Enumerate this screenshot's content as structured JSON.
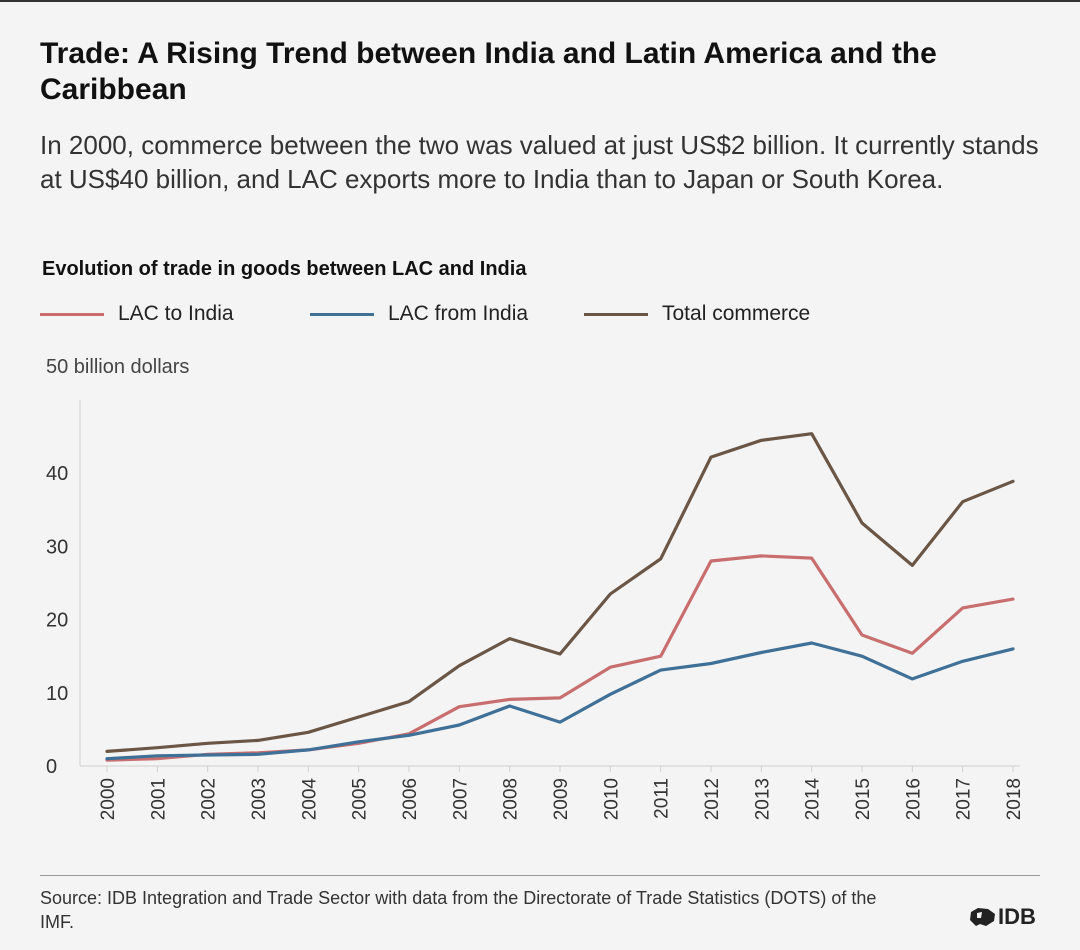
{
  "title": "Trade: A Rising Trend between India and Latin America and the Caribbean",
  "subtitle": "In 2000, commerce between the two was valued at just US$2 billion. It currently stands at US$40 billion, and LAC exports more to India than to Japan or South Korea.",
  "chart_title": "Evolution of trade in goods between LAC and India",
  "unit_label": "50 billion dollars",
  "legend": [
    {
      "label": "LAC to India",
      "color": "#c96e6e"
    },
    {
      "label": "LAC from India",
      "color": "#3e7098"
    },
    {
      "label": "Total commerce",
      "color": "#6b5646"
    }
  ],
  "source": "Source: IDB Integration and Trade Sector with data from the Directorate of Trade Statistics (DOTS) of the IMF.",
  "logo_text": "IDB",
  "chart_data": {
    "type": "line",
    "title": "Evolution of trade in goods between LAC and India",
    "xlabel": "",
    "ylabel": "50 billion dollars",
    "x": [
      "2000",
      "2001",
      "2002",
      "2003",
      "2004",
      "2005",
      "2006",
      "2007",
      "2008",
      "2009",
      "2010",
      "2011",
      "2012",
      "2013",
      "2014",
      "2015",
      "2016",
      "2017",
      "2018"
    ],
    "ylim": [
      0,
      50
    ],
    "yticks": [
      0,
      10,
      20,
      30,
      40
    ],
    "grid": false,
    "legend_position": "top",
    "series": [
      {
        "name": "LAC to India",
        "color": "#c96e6e",
        "values": [
          0.8,
          1.0,
          1.6,
          1.8,
          2.2,
          3.1,
          4.4,
          8.1,
          9.1,
          9.3,
          13.5,
          15.0,
          28.0,
          28.7,
          28.4,
          17.9,
          15.4,
          21.6,
          22.8
        ]
      },
      {
        "name": "LAC from India",
        "color": "#3e7098",
        "values": [
          1.0,
          1.4,
          1.5,
          1.6,
          2.2,
          3.3,
          4.2,
          5.6,
          8.2,
          6.0,
          9.8,
          13.1,
          14.0,
          15.5,
          16.8,
          15.0,
          11.9,
          14.3,
          16.0
        ]
      },
      {
        "name": "Total commerce",
        "color": "#6b5646",
        "values": [
          2.0,
          2.5,
          3.1,
          3.5,
          4.6,
          6.7,
          8.8,
          13.7,
          17.4,
          15.3,
          23.5,
          28.3,
          42.2,
          44.5,
          45.4,
          33.2,
          27.4,
          36.1,
          38.9
        ]
      }
    ]
  }
}
